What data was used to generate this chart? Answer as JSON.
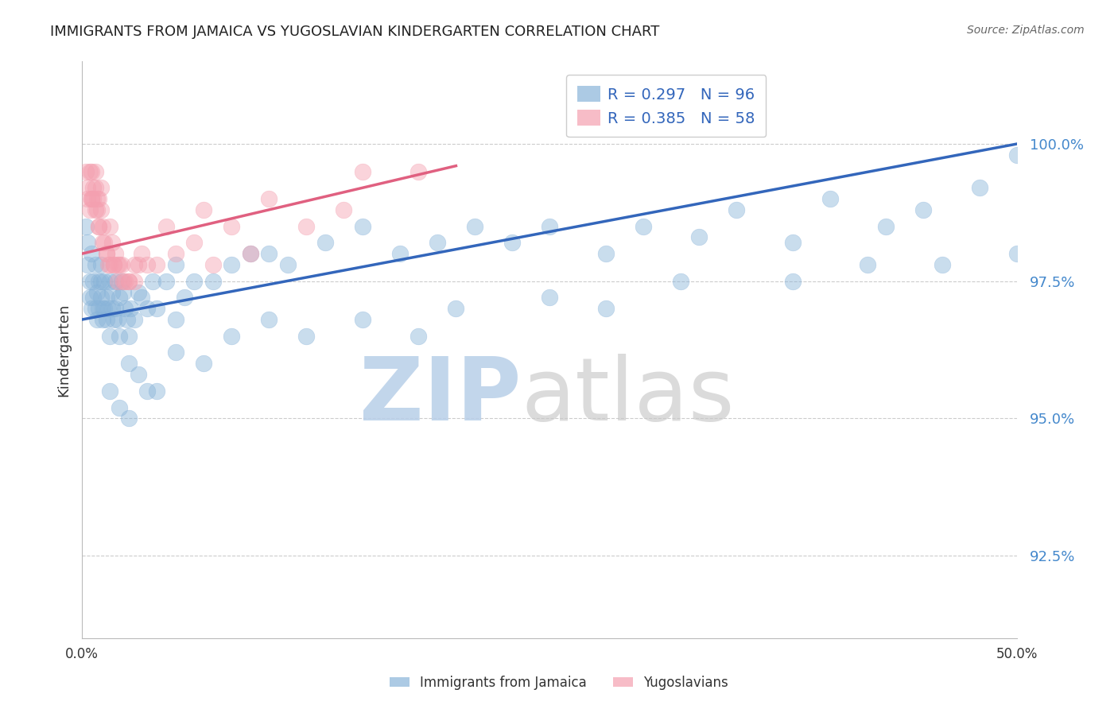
{
  "title": "IMMIGRANTS FROM JAMAICA VS YUGOSLAVIAN KINDERGARTEN CORRELATION CHART",
  "source": "Source: ZipAtlas.com",
  "ylabel": "Kindergarten",
  "xlim": [
    0.0,
    50.0
  ],
  "ylim": [
    91.0,
    101.5
  ],
  "yticks": [
    92.5,
    95.0,
    97.5,
    100.0
  ],
  "ytick_labels": [
    "92.5%",
    "95.0%",
    "97.5%",
    "100.0%"
  ],
  "blue_R": 0.297,
  "blue_N": 96,
  "pink_R": 0.385,
  "pink_N": 58,
  "blue_color": "#89B4D9",
  "pink_color": "#F4A0B0",
  "blue_line_color": "#3366BB",
  "pink_line_color": "#E06080",
  "blue_trend_x": [
    0.0,
    50.0
  ],
  "blue_trend_y": [
    96.8,
    100.0
  ],
  "pink_trend_x": [
    0.0,
    20.0
  ],
  "pink_trend_y": [
    98.0,
    99.6
  ],
  "blue_scatter_x": [
    0.2,
    0.3,
    0.3,
    0.4,
    0.4,
    0.5,
    0.5,
    0.6,
    0.6,
    0.7,
    0.7,
    0.8,
    0.8,
    0.9,
    0.9,
    1.0,
    1.0,
    1.0,
    1.1,
    1.1,
    1.2,
    1.2,
    1.3,
    1.3,
    1.4,
    1.5,
    1.5,
    1.6,
    1.6,
    1.7,
    1.8,
    1.8,
    1.9,
    2.0,
    2.1,
    2.2,
    2.3,
    2.4,
    2.5,
    2.6,
    2.8,
    3.0,
    3.2,
    3.5,
    3.8,
    4.0,
    4.5,
    5.0,
    5.5,
    6.0,
    7.0,
    8.0,
    9.0,
    10.0,
    11.0,
    13.0,
    15.0,
    17.0,
    19.0,
    21.0,
    23.0,
    25.0,
    28.0,
    30.0,
    33.0,
    35.0,
    38.0,
    40.0,
    43.0,
    45.0,
    48.0,
    50.0,
    2.0,
    2.5,
    3.0,
    4.0,
    5.0,
    6.5,
    8.0,
    10.0,
    12.0,
    15.0,
    18.0,
    20.0,
    25.0,
    28.0,
    32.0,
    38.0,
    42.0,
    46.0,
    50.0,
    1.5,
    2.0,
    2.5,
    3.5,
    5.0
  ],
  "blue_scatter_y": [
    98.5,
    98.2,
    97.8,
    97.5,
    97.2,
    97.0,
    98.0,
    97.5,
    97.2,
    97.8,
    97.0,
    97.3,
    96.8,
    97.5,
    97.0,
    97.8,
    97.2,
    97.5,
    97.0,
    96.8,
    97.5,
    97.0,
    96.8,
    97.2,
    97.0,
    97.5,
    96.5,
    97.3,
    97.0,
    96.8,
    97.5,
    97.0,
    96.8,
    97.2,
    97.5,
    97.3,
    97.0,
    96.8,
    96.5,
    97.0,
    96.8,
    97.3,
    97.2,
    97.0,
    97.5,
    97.0,
    97.5,
    97.8,
    97.2,
    97.5,
    97.5,
    97.8,
    98.0,
    98.0,
    97.8,
    98.2,
    98.5,
    98.0,
    98.2,
    98.5,
    98.2,
    98.5,
    98.0,
    98.5,
    98.3,
    98.8,
    98.2,
    99.0,
    98.5,
    98.8,
    99.2,
    99.8,
    96.5,
    96.0,
    95.8,
    95.5,
    96.2,
    96.0,
    96.5,
    96.8,
    96.5,
    96.8,
    96.5,
    97.0,
    97.2,
    97.0,
    97.5,
    97.5,
    97.8,
    97.8,
    98.0,
    95.5,
    95.2,
    95.0,
    95.5,
    96.8
  ],
  "pink_scatter_x": [
    0.2,
    0.3,
    0.3,
    0.4,
    0.4,
    0.5,
    0.5,
    0.6,
    0.6,
    0.7,
    0.7,
    0.8,
    0.8,
    0.9,
    0.9,
    1.0,
    1.0,
    1.1,
    1.2,
    1.3,
    1.4,
    1.5,
    1.6,
    1.7,
    1.8,
    1.9,
    2.0,
    2.2,
    2.5,
    2.8,
    3.0,
    3.5,
    4.0,
    5.0,
    6.0,
    7.0,
    8.0,
    9.0,
    10.0,
    12.0,
    14.0,
    15.0,
    18.0,
    0.5,
    0.7,
    0.9,
    1.1,
    1.3,
    1.5,
    1.7,
    1.9,
    2.1,
    2.3,
    2.5,
    2.8,
    3.2,
    4.5,
    6.5
  ],
  "pink_scatter_y": [
    99.5,
    99.2,
    99.0,
    99.5,
    98.8,
    99.0,
    99.5,
    99.2,
    99.0,
    99.5,
    99.2,
    99.0,
    98.8,
    98.5,
    99.0,
    99.2,
    98.8,
    98.5,
    98.2,
    98.0,
    97.8,
    98.5,
    98.2,
    97.8,
    98.0,
    97.8,
    97.8,
    97.5,
    97.5,
    97.8,
    97.8,
    97.8,
    97.8,
    98.0,
    98.2,
    97.8,
    98.5,
    98.0,
    99.0,
    98.5,
    98.8,
    99.5,
    99.5,
    99.0,
    98.8,
    98.5,
    98.2,
    98.0,
    97.8,
    97.8,
    97.5,
    97.8,
    97.5,
    97.5,
    97.5,
    98.0,
    98.5,
    98.8
  ]
}
